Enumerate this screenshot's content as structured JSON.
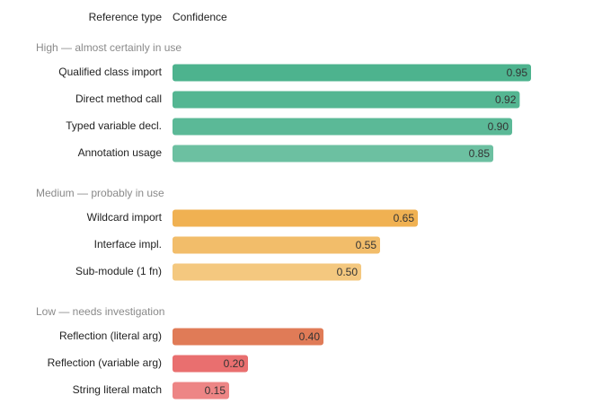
{
  "chart_data": {
    "type": "bar",
    "orientation": "horizontal",
    "category_header": "Reference type",
    "value_header": "Confidence",
    "xlim": [
      0,
      1
    ],
    "groups": [
      {
        "name": "High — almost certainly in use",
        "categories": [
          "Qualified class import",
          "Direct method call",
          "Typed variable decl.",
          "Annotation usage"
        ],
        "values": [
          0.95,
          0.92,
          0.9,
          0.85
        ],
        "value_labels": [
          "0.95",
          "0.92",
          "0.90",
          "0.85"
        ],
        "colors": [
          "#4db38e",
          "#54b692",
          "#5bb997",
          "#6cc0a1"
        ]
      },
      {
        "name": "Medium — probably in use",
        "categories": [
          "Wildcard import",
          "Interface impl.",
          "Sub-module (1 fn)"
        ],
        "values": [
          0.65,
          0.55,
          0.5
        ],
        "value_labels": [
          "0.65",
          "0.55",
          "0.50"
        ],
        "colors": [
          "#f0b152",
          "#f2bd6a",
          "#f4c87f"
        ]
      },
      {
        "name": "Low — needs investigation",
        "categories": [
          "Reflection (literal arg)",
          "Reflection (variable arg)",
          "String literal match"
        ],
        "values": [
          0.4,
          0.2,
          0.15
        ],
        "value_labels": [
          "0.40",
          "0.20",
          "0.15"
        ],
        "colors": [
          "#e07b57",
          "#e96f6f",
          "#ed8585"
        ]
      }
    ]
  }
}
